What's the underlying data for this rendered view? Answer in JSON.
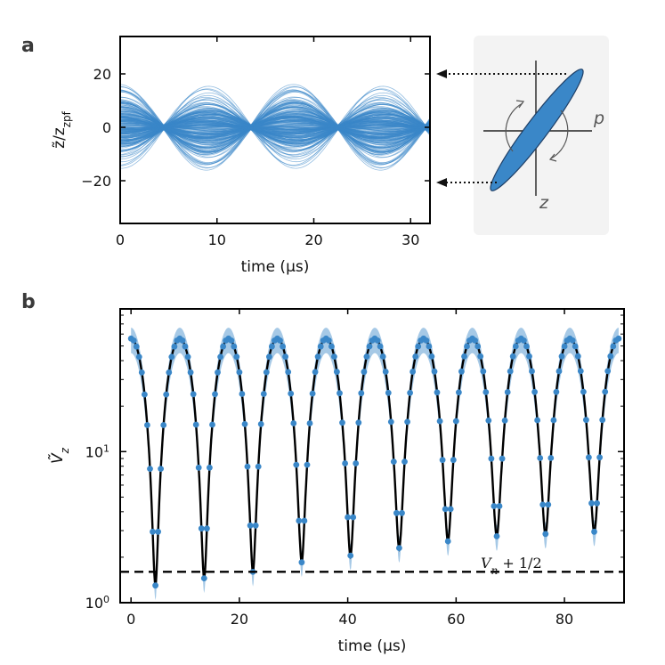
{
  "panels": {
    "a": "a",
    "b": "b"
  },
  "chart_data": [
    {
      "panel": "a",
      "type": "line",
      "xlabel": "time (μs)",
      "ylabel": "z̃/z_zpf",
      "xlim": [
        0,
        32
      ],
      "ylim": [
        -36,
        34
      ],
      "xticks": [
        0,
        10,
        20,
        30
      ],
      "yticks": [
        -20,
        0,
        20
      ],
      "x_tick_labels": [
        "0",
        "10",
        "20",
        "30"
      ],
      "y_tick_labels": [
        "−20",
        "0",
        "20"
      ],
      "series_description": "ensemble of ~200 trajectories; envelope max ≈ ±20 at t ≈ 0, 9, 18, 27 μs; nodes (≈ ±1) at t ≈ 4.5, 13.5, 22.5, 31.5 μs",
      "period_us": 9.0,
      "envelope_max": 20,
      "envelope_min": 1,
      "color": "#3a87c8",
      "inset": {
        "p_label": "p",
        "z_label": "z",
        "ellipse_color": "#3a87c8"
      }
    },
    {
      "panel": "b",
      "type": "scatter",
      "xlabel": "time (μs)",
      "ylabel": "Ṽ_z",
      "yscale": "log",
      "xlim": [
        -2,
        91
      ],
      "ylim": [
        1,
        88
      ],
      "xticks": [
        0,
        20,
        40,
        60,
        80
      ],
      "x_tick_labels": [
        "0",
        "20",
        "40",
        "60",
        "80"
      ],
      "y_tick_labels": [
        {
          "base": "10",
          "exp": "0",
          "value": 1
        },
        {
          "base": "10",
          "exp": "1",
          "value": 10
        }
      ],
      "series": [
        {
          "name": "data",
          "color": "#3a87c8",
          "period_us": 9.0,
          "first_minimum_us": 4.5,
          "max_value": 56,
          "min_values": [
            1.3,
            1.45,
            1.6,
            1.85,
            2.05,
            2.3,
            2.55,
            2.75,
            2.85,
            2.95
          ]
        },
        {
          "name": "fit",
          "style": "solid",
          "color": "#000000"
        }
      ],
      "reference_line": {
        "value": 1.6,
        "style": "dashed",
        "label": "V_n + 1/2",
        "label_text": "V",
        "label_sub": "n",
        "label_tail": " + 1/2"
      }
    }
  ]
}
